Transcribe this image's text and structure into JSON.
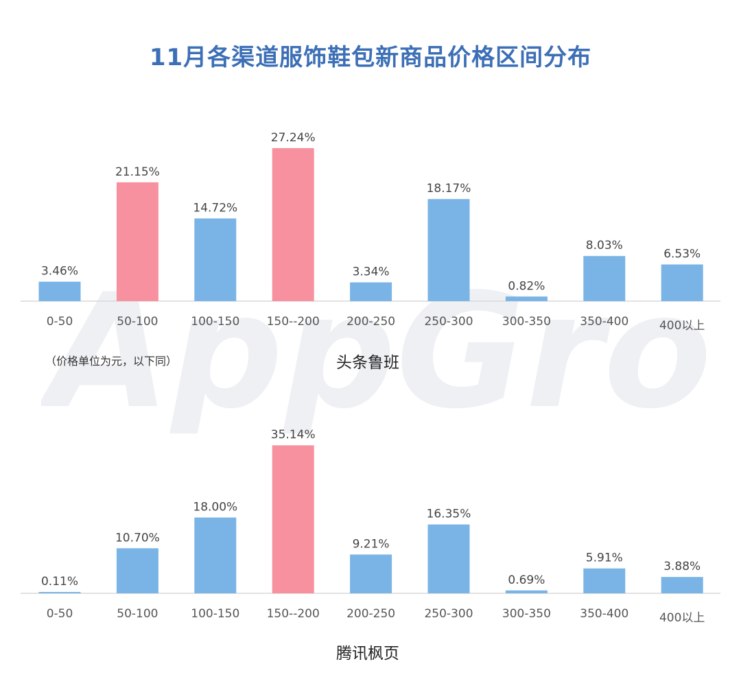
{
  "title": "11月各渠道服饰鞋包新商品价格区间分布",
  "watermark": "AppGrowing",
  "colors": {
    "title": "#3c6fb6",
    "bar": "#7ab4e6",
    "highlight": "#f8919f",
    "axis": "#d9d9d9",
    "watermark": "#eef0f4"
  },
  "chart_data": [
    {
      "type": "bar",
      "title": "头条鲁班",
      "note": "（价格单位为元，以下同）",
      "categories": [
        "0-50",
        "50-100",
        "100-150",
        "150--200",
        "200-250",
        "250-300",
        "300-350",
        "350-400",
        "400以上"
      ],
      "values": [
        3.46,
        21.15,
        14.72,
        27.24,
        3.34,
        18.17,
        0.82,
        8.03,
        6.53
      ],
      "value_labels": [
        "3.46%",
        "21.15%",
        "14.72%",
        "27.24%",
        "3.34%",
        "18.17%",
        "0.82%",
        "8.03%",
        "6.53%"
      ],
      "highlight": [
        1,
        3
      ],
      "unit": "%"
    },
    {
      "type": "bar",
      "title": "腾讯枫页",
      "categories": [
        "0-50",
        "50-100",
        "100-150",
        "150--200",
        "200-250",
        "250-300",
        "300-350",
        "350-400",
        "400以上"
      ],
      "values": [
        0.11,
        10.7,
        18.0,
        35.14,
        9.21,
        16.35,
        0.69,
        5.91,
        3.88
      ],
      "value_labels": [
        "0.11%",
        "10.70%",
        "18.00%",
        "35.14%",
        "9.21%",
        "16.35%",
        "0.69%",
        "5.91%",
        "3.88%"
      ],
      "highlight": [
        3
      ],
      "unit": "%"
    }
  ]
}
